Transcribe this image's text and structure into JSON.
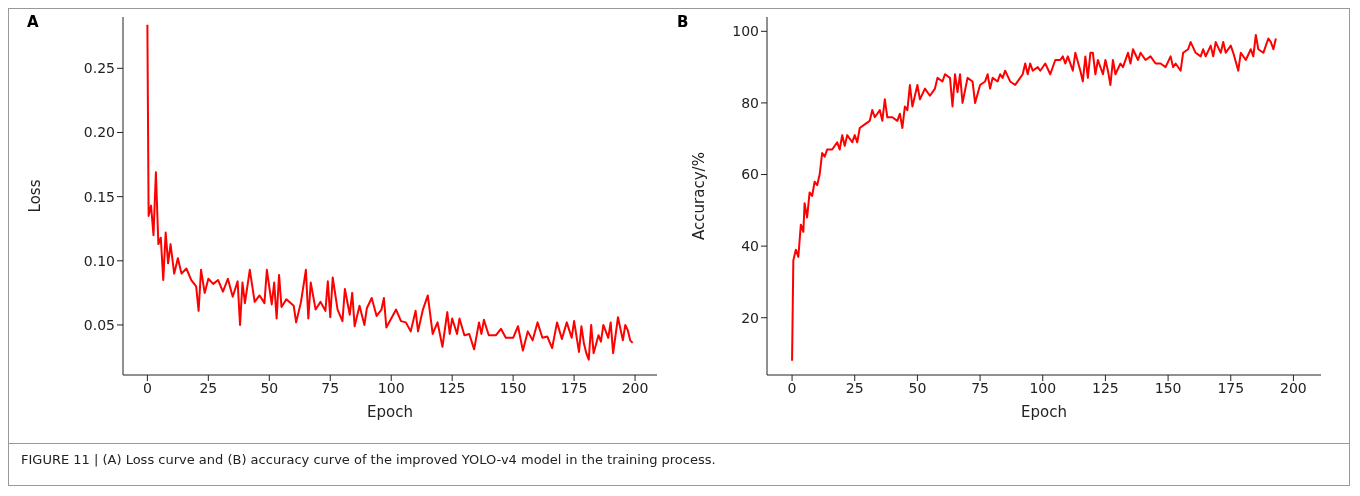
{
  "chart_data": [
    {
      "type": "line",
      "title": "A",
      "xlabel": "Epoch",
      "ylabel": "Loss",
      "xlim": [
        -10,
        209
      ],
      "ylim": [
        0.011,
        0.29
      ],
      "xticks": [
        0,
        25,
        50,
        75,
        100,
        125,
        150,
        175,
        200
      ],
      "yticks": [
        0.05,
        {
          "value": 0.1,
          "label": "0.10"
        },
        0.15,
        {
          "value": 0.2,
          "label": "0.20"
        },
        0.25
      ],
      "marker": "none",
      "line_style": "solid",
      "annotations": [
        "FIGURE 11 | (A) Loss curve and (B) accuracy curve of the improved YOLO-v4 model in the training process."
      ],
      "x": [
        0,
        0.5,
        1.5,
        2.5,
        3.5,
        4.5,
        5.5,
        6.5,
        7.5,
        8.5,
        9.5,
        11,
        12.5,
        14,
        16,
        18,
        20,
        21,
        22,
        23.5,
        25,
        27,
        29,
        31,
        33,
        35,
        37,
        38,
        39,
        40,
        42,
        44,
        46,
        48,
        49,
        51,
        52,
        53,
        54,
        55,
        57,
        60,
        61,
        63,
        65,
        66,
        67,
        69,
        71,
        73,
        74,
        75,
        76,
        78,
        80,
        81,
        83,
        84,
        85,
        87,
        89,
        90,
        92,
        94,
        96,
        97,
        98,
        100,
        102,
        104,
        106,
        108,
        110,
        111,
        113,
        115,
        117,
        119,
        121,
        123,
        124,
        125,
        127,
        128,
        130,
        132,
        134,
        136,
        137,
        138,
        140,
        143,
        145,
        147,
        150,
        152,
        154,
        156,
        158,
        160,
        162,
        164,
        166,
        168,
        170,
        172,
        174,
        175,
        177,
        178,
        179,
        180,
        181,
        182,
        183,
        185,
        186,
        187,
        189,
        190,
        191,
        193,
        195,
        196,
        197,
        198,
        199
      ],
      "series": [
        {
          "color": "#ff0000",
          "values": [
            0.284,
            0.135,
            0.143,
            0.12,
            0.169,
            0.113,
            0.118,
            0.085,
            0.122,
            0.098,
            0.113,
            0.09,
            0.102,
            0.09,
            0.094,
            0.085,
            0.08,
            0.061,
            0.093,
            0.075,
            0.086,
            0.082,
            0.085,
            0.076,
            0.086,
            0.072,
            0.084,
            0.05,
            0.083,
            0.067,
            0.093,
            0.068,
            0.073,
            0.067,
            0.093,
            0.066,
            0.083,
            0.055,
            0.089,
            0.064,
            0.07,
            0.065,
            0.052,
            0.068,
            0.093,
            0.055,
            0.083,
            0.062,
            0.068,
            0.061,
            0.084,
            0.056,
            0.087,
            0.062,
            0.053,
            0.078,
            0.058,
            0.075,
            0.049,
            0.065,
            0.05,
            0.063,
            0.071,
            0.057,
            0.062,
            0.071,
            0.048,
            0.055,
            0.062,
            0.053,
            0.052,
            0.045,
            0.061,
            0.045,
            0.062,
            0.073,
            0.043,
            0.052,
            0.033,
            0.06,
            0.043,
            0.055,
            0.043,
            0.055,
            0.042,
            0.043,
            0.031,
            0.052,
            0.043,
            0.054,
            0.042,
            0.042,
            0.047,
            0.04,
            0.04,
            0.049,
            0.03,
            0.045,
            0.038,
            0.052,
            0.04,
            0.041,
            0.032,
            0.052,
            0.039,
            0.052,
            0.04,
            0.053,
            0.029,
            0.049,
            0.036,
            0.028,
            0.023,
            0.05,
            0.028,
            0.042,
            0.037,
            0.05,
            0.04,
            0.052,
            0.028,
            0.056,
            0.038,
            0.05,
            0.046,
            0.038,
            0.036
          ]
        }
      ]
    },
    {
      "type": "line",
      "title": "B",
      "xlabel": "Epoch",
      "ylabel": "Accuracy/%",
      "xlim": [
        -10,
        211
      ],
      "ylim": [
        4,
        104
      ],
      "xticks": [
        0,
        25,
        50,
        75,
        100,
        125,
        150,
        175,
        200
      ],
      "yticks": [
        20,
        40,
        60,
        80,
        100
      ],
      "marker": "none",
      "line_style": "solid",
      "x": [
        0,
        0.5,
        1.5,
        2.5,
        3.5,
        4.5,
        5,
        6,
        7,
        8,
        9,
        10,
        11,
        12,
        13,
        14,
        16,
        18,
        19,
        20,
        21,
        22,
        24,
        25,
        26,
        27,
        29,
        31,
        32,
        33,
        35,
        36,
        37,
        38,
        40,
        42,
        43,
        44,
        45,
        46,
        47,
        48,
        50,
        51,
        53,
        55,
        57,
        58,
        60,
        61,
        63,
        64,
        65,
        66,
        67,
        68,
        70,
        72,
        73,
        75,
        77,
        78,
        79,
        80,
        82,
        83,
        84,
        85,
        87,
        89,
        90,
        92,
        93,
        94,
        95,
        96,
        98,
        99,
        101,
        103,
        105,
        107,
        108,
        109,
        110,
        112,
        113,
        115,
        116,
        117,
        118,
        119,
        120,
        121,
        122,
        124,
        125,
        126,
        127,
        128,
        129,
        131,
        132,
        134,
        135,
        136,
        138,
        139,
        141,
        143,
        145,
        147,
        149,
        151,
        152,
        153,
        155,
        156,
        158,
        159,
        161,
        163,
        164,
        165,
        167,
        168,
        169,
        171,
        172,
        173,
        175,
        176,
        178,
        179,
        181,
        183,
        184,
        185,
        186,
        188,
        189,
        190,
        191,
        192,
        193
      ],
      "series": [
        {
          "color": "#ff0000",
          "values": [
            8,
            36,
            39,
            37,
            46,
            44,
            52,
            48,
            55,
            54,
            58,
            57,
            60,
            66,
            65,
            67,
            67,
            69,
            67,
            71,
            68,
            71,
            69,
            71,
            69,
            73,
            74,
            75,
            78,
            76,
            78,
            75,
            81,
            76,
            76,
            75,
            77,
            73,
            79,
            78,
            85,
            79,
            85,
            81,
            84,
            82,
            84,
            87,
            86,
            88,
            87,
            79,
            88,
            83,
            88,
            80,
            87,
            86,
            80,
            85,
            86,
            88,
            84,
            87,
            86,
            88,
            87,
            89,
            86,
            85,
            86,
            88,
            91,
            88,
            91,
            89,
            90,
            89,
            91,
            88,
            92,
            92,
            93,
            91,
            93,
            89,
            94,
            89,
            86,
            93,
            87,
            94,
            94,
            88,
            92,
            88,
            92,
            89,
            85,
            92,
            88,
            91,
            90,
            94,
            91,
            95,
            92,
            94,
            92,
            93,
            91,
            91,
            90,
            93,
            90,
            91,
            89,
            94,
            95,
            97,
            94,
            93,
            95,
            93,
            96,
            93,
            97,
            94,
            97,
            94,
            96,
            94,
            89,
            94,
            92,
            95,
            93,
            99,
            95,
            94,
            96,
            98,
            97,
            95,
            98
          ]
        }
      ]
    }
  ]
}
